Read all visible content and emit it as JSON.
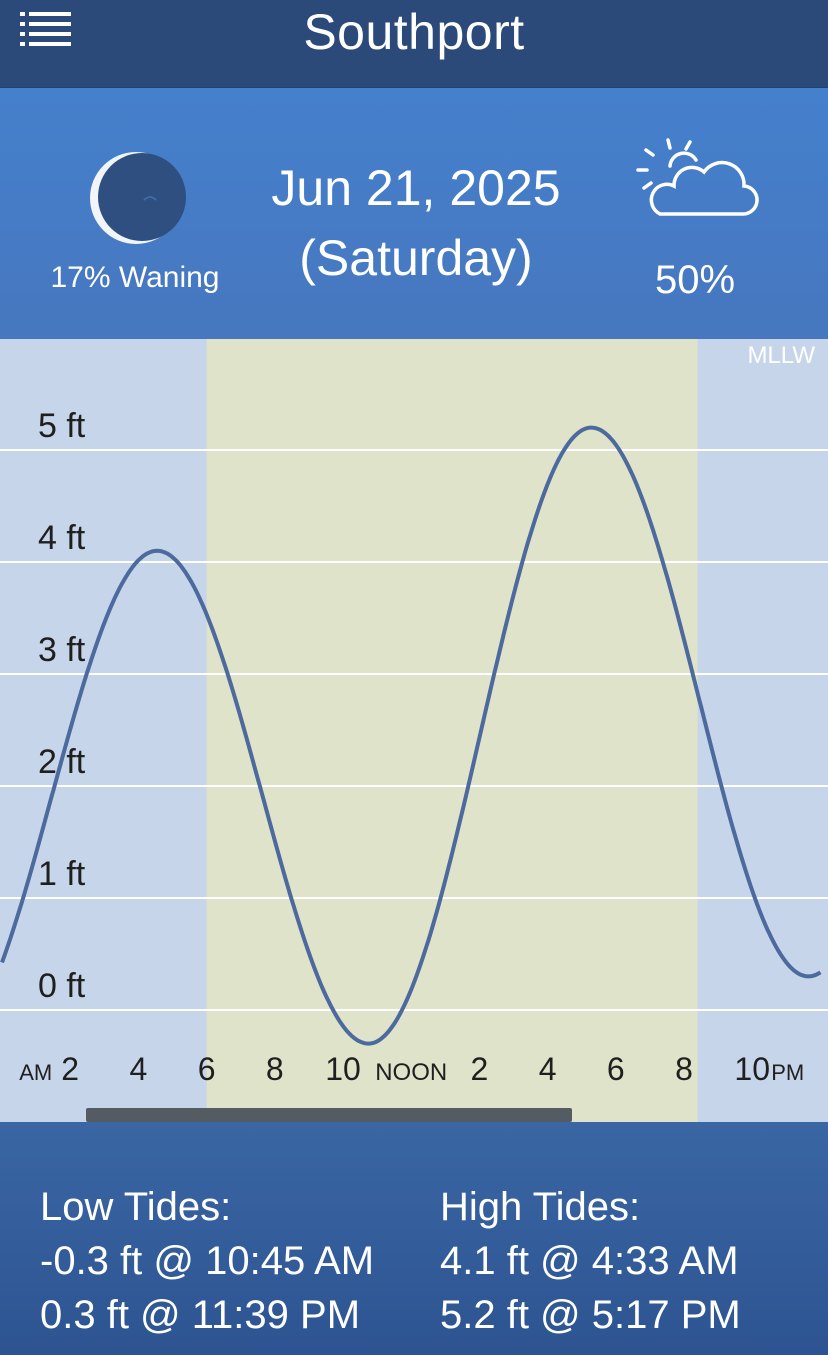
{
  "header": {
    "title": "Southport",
    "menu_icon": "list-menu-icon"
  },
  "info": {
    "moon": {
      "icon": "waning-moon-icon",
      "label": "17% Waning",
      "illumination": 0.17
    },
    "date_line1": "Jun 21, 2025",
    "date_line2": "(Saturday)",
    "weather": {
      "icon": "partly-cloudy-icon",
      "percent": "50%"
    }
  },
  "chart_data": {
    "type": "line",
    "datum_label": "MLLW",
    "y_unit": "ft",
    "ylim": [
      -0.5,
      5.7
    ],
    "y_ticks": [
      "5 ft",
      "4 ft",
      "3 ft",
      "2 ft",
      "1 ft",
      "0 ft"
    ],
    "y_tick_values": [
      5,
      4,
      3,
      2,
      1,
      0
    ],
    "xlim_hours": [
      0,
      24
    ],
    "x_ticks": [
      {
        "hour": 2,
        "label": "2",
        "prefix": "AM"
      },
      {
        "hour": 4,
        "label": "4"
      },
      {
        "hour": 6,
        "label": "6"
      },
      {
        "hour": 8,
        "label": "8"
      },
      {
        "hour": 10,
        "label": "10"
      },
      {
        "hour": 12,
        "label": "NOON"
      },
      {
        "hour": 14,
        "label": "2"
      },
      {
        "hour": 16,
        "label": "4"
      },
      {
        "hour": 18,
        "label": "6"
      },
      {
        "hour": 20,
        "label": "8"
      },
      {
        "hour": 22,
        "label": "10",
        "suffix": "PM"
      }
    ],
    "daylight_hours": [
      6.0,
      20.4
    ],
    "tide_events": [
      {
        "hour": 4.55,
        "height": 4.1,
        "type": "high"
      },
      {
        "hour": 10.75,
        "height": -0.3,
        "type": "low"
      },
      {
        "hour": 17.28,
        "height": 5.2,
        "type": "high"
      },
      {
        "hour": 23.65,
        "height": 0.3,
        "type": "low"
      }
    ],
    "colors": {
      "night": "#c6d5e9",
      "day": "#dfe3c9",
      "line": "#4d6a9e",
      "grid": "#ffffff"
    }
  },
  "tides": {
    "low_title": "Low Tides:",
    "low": [
      "-0.3 ft @ 10:45 AM",
      "0.3 ft @ 11:39 PM"
    ],
    "high_title": "High Tides:",
    "high": [
      "4.1 ft @ 4:33 AM",
      "5.2 ft @ 5:17 PM"
    ]
  }
}
